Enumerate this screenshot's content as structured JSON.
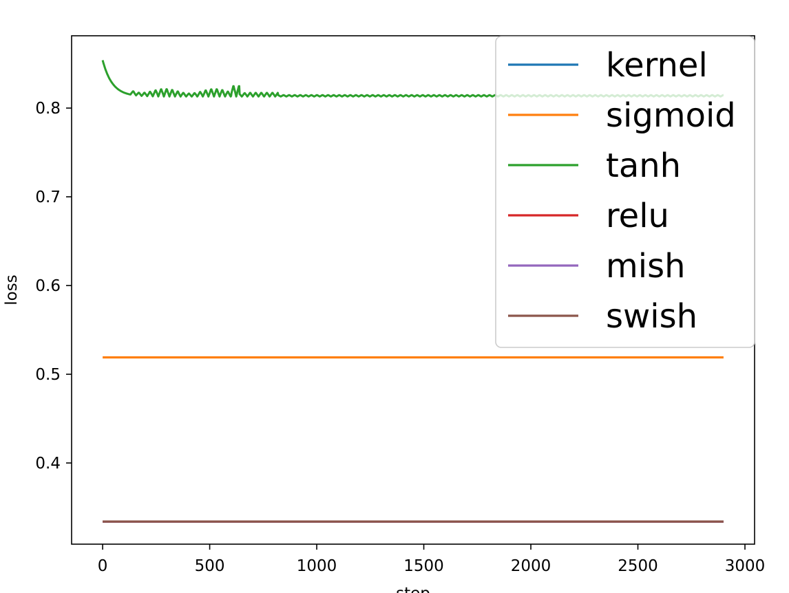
{
  "chart_data": {
    "type": "line",
    "xlabel": "step",
    "ylabel": "loss",
    "xlim": [
      -145,
      3045
    ],
    "ylim": [
      0.3085,
      0.8815
    ],
    "xticks": [
      0,
      500,
      1000,
      1500,
      2000,
      2500,
      3000
    ],
    "yticks": [
      0.4,
      0.5,
      0.6,
      0.7,
      0.8
    ],
    "grid": false,
    "legend": {
      "placement": "top-right"
    },
    "x_range": [
      0,
      2900
    ],
    "series": [
      {
        "name": "kernel",
        "color": "#1f77b4",
        "shape": "constant",
        "value": 0.334
      },
      {
        "name": "sigmoid",
        "color": "#ff7f0e",
        "shape": "constant",
        "value": 0.519
      },
      {
        "name": "tanh",
        "color": "#2ca02c",
        "shape": "decay_oscillating",
        "start": 0.854,
        "value": 0.813,
        "amplitude": 0.009
      },
      {
        "name": "relu",
        "color": "#d62728",
        "shape": "constant",
        "value": 0.334
      },
      {
        "name": "mish",
        "color": "#9467bd",
        "shape": "constant",
        "value": 0.334
      },
      {
        "name": "swish",
        "color": "#8c564b",
        "shape": "constant",
        "value": 0.334
      }
    ]
  }
}
